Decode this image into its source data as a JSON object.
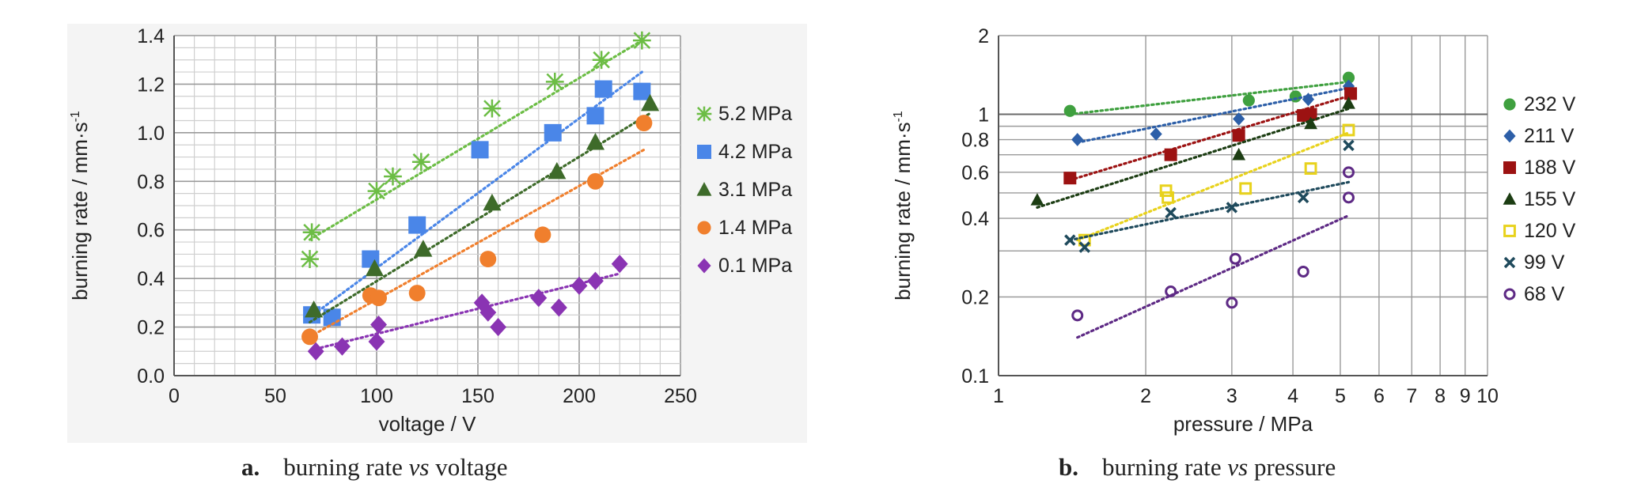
{
  "chart_data": [
    {
      "type": "scatter",
      "caption": {
        "label": "a.",
        "text_before": "burning rate ",
        "text_italic": "vs",
        "text_after": " voltage"
      },
      "xlabel": "voltage / V",
      "ylabel": "burning rate / mm·s",
      "ylabel_sup": "-1",
      "xlim": [
        0,
        250
      ],
      "ylim": [
        0,
        1.4
      ],
      "xticks": [
        0,
        50,
        100,
        150,
        200,
        250
      ],
      "yticks": [
        "0.0",
        "0.2",
        "0.4",
        "0.6",
        "0.8",
        "1.0",
        "1.2",
        "1.4"
      ],
      "grid": true,
      "legend_placement": "right",
      "series": [
        {
          "name": "5.2 MPa",
          "marker": "asterisk",
          "color": "#6cbd45",
          "x": [
            67,
            68,
            100,
            108,
            122,
            157,
            188,
            211,
            231
          ],
          "y": [
            0.48,
            0.59,
            0.76,
            0.82,
            0.88,
            1.1,
            1.21,
            1.3,
            1.38
          ],
          "trend": [
            [
              67,
              0.56
            ],
            [
              231,
              1.38
            ]
          ]
        },
        {
          "name": "4.2 MPa",
          "marker": "square",
          "color": "#4a86e8",
          "x": [
            68,
            78,
            97,
            120,
            151,
            187,
            208,
            212,
            231
          ],
          "y": [
            0.25,
            0.24,
            0.48,
            0.62,
            0.93,
            1.0,
            1.07,
            1.18,
            1.17
          ],
          "trend": [
            [
              67,
              0.24
            ],
            [
              231,
              1.25
            ]
          ]
        },
        {
          "name": "3.1 MPa",
          "marker": "triangle",
          "color": "#3e6b2a",
          "x": [
            69,
            99,
            123,
            157,
            189,
            208,
            235
          ],
          "y": [
            0.27,
            0.44,
            0.52,
            0.71,
            0.84,
            0.96,
            1.12
          ],
          "trend": [
            [
              67,
              0.22
            ],
            [
              235,
              1.08
            ]
          ]
        },
        {
          "name": "1.4 MPa",
          "marker": "circle",
          "color": "#f07f2d",
          "x": [
            67,
            97,
            101,
            120,
            155,
            182,
            208,
            232
          ],
          "y": [
            0.16,
            0.33,
            0.32,
            0.34,
            0.48,
            0.58,
            0.8,
            1.04
          ],
          "trend": [
            [
              67,
              0.16
            ],
            [
              232,
              0.93
            ]
          ]
        },
        {
          "name": "0.1 MPa",
          "marker": "diamond",
          "color": "#8a34b3",
          "x": [
            70,
            83,
            100,
            101,
            152,
            155,
            160,
            180,
            190,
            200,
            208,
            220
          ],
          "y": [
            0.1,
            0.12,
            0.14,
            0.21,
            0.3,
            0.26,
            0.2,
            0.32,
            0.28,
            0.37,
            0.39,
            0.46
          ],
          "trend": [
            [
              70,
              0.11
            ],
            [
              220,
              0.42
            ]
          ]
        }
      ]
    },
    {
      "type": "scatter",
      "caption": {
        "label": "b.",
        "text_before": "burning rate ",
        "text_italic": "vs",
        "text_after": " pressure"
      },
      "xlabel": "pressure / MPa",
      "ylabel": "burning rate / mm·s",
      "ylabel_sup": "-1",
      "xscale": "log",
      "yscale": "log",
      "xlim": [
        1,
        10
      ],
      "ylim": [
        0.1,
        2
      ],
      "xticks": [
        "1",
        "2",
        "3",
        "4",
        "5",
        "6",
        "7",
        "8",
        "9",
        "10"
      ],
      "yticks": [
        "0.1",
        "0.2",
        "0.4",
        "0.6",
        "0.8",
        "1",
        "2"
      ],
      "grid": true,
      "legend_placement": "right",
      "series": [
        {
          "name": "232 V",
          "marker": "circle",
          "color": "#3fa03f",
          "x": [
            1.4,
            3.25,
            4.05,
            5.2
          ],
          "y": [
            1.03,
            1.13,
            1.17,
            1.38
          ],
          "trend": [
            [
              1.4,
              1.0
            ],
            [
              5.2,
              1.33
            ]
          ]
        },
        {
          "name": "211 V",
          "marker": "diamond",
          "color": "#2d5fa8",
          "x": [
            1.45,
            2.1,
            3.1,
            4.3,
            5.2
          ],
          "y": [
            0.8,
            0.84,
            0.96,
            1.14,
            1.28
          ],
          "trend": [
            [
              1.45,
              0.78
            ],
            [
              5.2,
              1.26
            ]
          ]
        },
        {
          "name": "188 V",
          "marker": "square",
          "color": "#9c1212",
          "x": [
            1.4,
            2.25,
            3.1,
            4.2,
            4.35,
            5.25
          ],
          "y": [
            0.57,
            0.7,
            0.83,
            0.99,
            1.0,
            1.2
          ],
          "trend": [
            [
              1.4,
              0.56
            ],
            [
              5.25,
              1.18
            ]
          ]
        },
        {
          "name": "155 V",
          "marker": "triangle",
          "color": "#1c3d13",
          "x": [
            1.2,
            3.1,
            4.35,
            5.2
          ],
          "y": [
            0.47,
            0.7,
            0.92,
            1.1
          ],
          "trend": [
            [
              1.2,
              0.44
            ],
            [
              5.2,
              1.05
            ]
          ]
        },
        {
          "name": "120 V",
          "marker": "square-open",
          "color": "#e8d21c",
          "x": [
            1.5,
            2.2,
            2.22,
            3.2,
            4.35,
            5.2
          ],
          "y": [
            0.33,
            0.51,
            0.48,
            0.52,
            0.62,
            0.87
          ],
          "trend": [
            [
              1.45,
              0.33
            ],
            [
              5.2,
              0.85
            ]
          ]
        },
        {
          "name": "99 V",
          "marker": "x",
          "color": "#1f4a5c",
          "x": [
            1.4,
            1.5,
            2.25,
            3.0,
            4.2,
            5.2
          ],
          "y": [
            0.33,
            0.31,
            0.42,
            0.44,
            0.48,
            0.76
          ],
          "trend": [
            [
              1.4,
              0.33
            ],
            [
              5.2,
              0.55
            ]
          ]
        },
        {
          "name": "68 V",
          "marker": "circle-open",
          "color": "#5e2a85",
          "x": [
            1.45,
            2.25,
            3.05,
            3.0,
            4.2,
            5.2,
            5.2
          ],
          "y": [
            0.17,
            0.21,
            0.28,
            0.19,
            0.25,
            0.48,
            0.6
          ],
          "trend": [
            [
              1.45,
              0.14
            ],
            [
              5.2,
              0.41
            ]
          ]
        }
      ]
    }
  ]
}
